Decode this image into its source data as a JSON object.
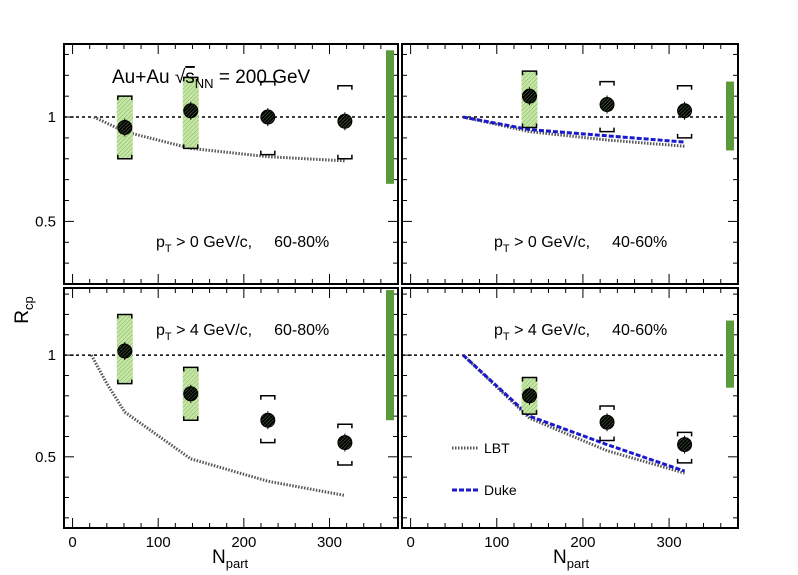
{
  "figure": {
    "y_axis_label_main": "R",
    "y_axis_label_sub": "cp",
    "x_axis_label_main": "N",
    "x_axis_label_sub": "part",
    "system_label_prefix": "Au+Au ",
    "system_label_sqrt": "√",
    "system_label_s": "s",
    "system_label_sub": "NN",
    "system_label_suffix": " = 200 GeV"
  },
  "colors": {
    "data_marker": "#000000",
    "syst_fill": "#c8e6a8",
    "norm_band": "#5a9a3a",
    "lbt": "#555555",
    "duke": "#1a1acc",
    "reference_line": "#000000"
  },
  "legend": {
    "lbt": "LBT",
    "duke": "Duke"
  },
  "chart_data": [
    {
      "type": "scatter",
      "panel": "top-left",
      "label_pt_prefix": "p",
      "label_pt_sub": "T",
      "label_pt_suffix": " > 0 GeV/c,",
      "label_centrality": "60-80%",
      "xlim": [
        -10,
        380
      ],
      "ylim": [
        0.2,
        1.35
      ],
      "xticks": [
        "0",
        "100",
        "200",
        "300"
      ],
      "yticks": [
        "0.5",
        "1"
      ],
      "show_x_tick_labels": false,
      "show_y_tick_labels": true,
      "points": [
        {
          "x": 61,
          "y": 0.95,
          "syst_lo": 0.8,
          "syst_hi": 1.1,
          "shaded": true
        },
        {
          "x": 138,
          "y": 1.03,
          "syst_lo": 0.85,
          "syst_hi": 1.19,
          "shaded": true
        },
        {
          "x": 228,
          "y": 1.0,
          "syst_lo": 0.82,
          "syst_hi": 1.17,
          "shaded": false
        },
        {
          "x": 318,
          "y": 0.98,
          "syst_lo": 0.8,
          "syst_hi": 1.15,
          "shaded": false
        }
      ],
      "norm_band": [
        0.68,
        1.32
      ],
      "lbt": [
        [
          25,
          1.0
        ],
        [
          61,
          0.93
        ],
        [
          138,
          0.85
        ],
        [
          228,
          0.81
        ],
        [
          318,
          0.79
        ]
      ],
      "duke": []
    },
    {
      "type": "scatter",
      "panel": "top-right",
      "label_pt_prefix": "p",
      "label_pt_sub": "T",
      "label_pt_suffix": " > 0 GeV/c,",
      "label_centrality": "40-60%",
      "xlim": [
        -10,
        380
      ],
      "ylim": [
        0.2,
        1.35
      ],
      "xticks": [
        "0",
        "100",
        "200",
        "300"
      ],
      "yticks": [
        "0.5",
        "1"
      ],
      "show_x_tick_labels": false,
      "show_y_tick_labels": false,
      "points": [
        {
          "x": 138,
          "y": 1.1,
          "syst_lo": 0.95,
          "syst_hi": 1.22,
          "shaded": true
        },
        {
          "x": 228,
          "y": 1.06,
          "syst_lo": 0.93,
          "syst_hi": 1.17,
          "shaded": false
        },
        {
          "x": 318,
          "y": 1.03,
          "syst_lo": 0.9,
          "syst_hi": 1.15,
          "shaded": false
        }
      ],
      "norm_band": [
        0.84,
        1.17
      ],
      "lbt": [
        [
          61,
          1.0
        ],
        [
          138,
          0.93
        ],
        [
          228,
          0.89
        ],
        [
          318,
          0.86
        ]
      ],
      "duke": [
        [
          61,
          1.0
        ],
        [
          138,
          0.94
        ],
        [
          228,
          0.91
        ],
        [
          318,
          0.88
        ]
      ]
    },
    {
      "type": "scatter",
      "panel": "bottom-left",
      "label_pt_prefix": "p",
      "label_pt_sub": "T",
      "label_pt_suffix": " > 4 GeV/c,",
      "label_centrality": "60-80%",
      "xlim": [
        -10,
        380
      ],
      "ylim": [
        0.15,
        1.33
      ],
      "xticks": [
        "0",
        "100",
        "200",
        "300"
      ],
      "yticks": [
        "0.5",
        "1"
      ],
      "show_x_tick_labels": true,
      "show_y_tick_labels": true,
      "points": [
        {
          "x": 61,
          "y": 1.02,
          "syst_lo": 0.86,
          "syst_hi": 1.2,
          "shaded": true
        },
        {
          "x": 138,
          "y": 0.81,
          "syst_lo": 0.68,
          "syst_hi": 0.94,
          "shaded": true
        },
        {
          "x": 228,
          "y": 0.68,
          "syst_lo": 0.57,
          "syst_hi": 0.8,
          "shaded": false
        },
        {
          "x": 318,
          "y": 0.57,
          "syst_lo": 0.46,
          "syst_hi": 0.66,
          "shaded": false
        }
      ],
      "norm_band": [
        0.68,
        1.32
      ],
      "lbt": [
        [
          22,
          1.0
        ],
        [
          40,
          0.86
        ],
        [
          61,
          0.72
        ],
        [
          138,
          0.49
        ],
        [
          228,
          0.38
        ],
        [
          318,
          0.31
        ]
      ],
      "duke": []
    },
    {
      "type": "scatter",
      "panel": "bottom-right",
      "label_pt_prefix": "p",
      "label_pt_sub": "T",
      "label_pt_suffix": " > 4 GeV/c,",
      "label_centrality": "40-60%",
      "xlim": [
        -10,
        380
      ],
      "ylim": [
        0.15,
        1.33
      ],
      "xticks": [
        "0",
        "100",
        "200",
        "300"
      ],
      "yticks": [
        "0.5",
        "1"
      ],
      "show_x_tick_labels": true,
      "show_y_tick_labels": false,
      "points": [
        {
          "x": 138,
          "y": 0.8,
          "syst_lo": 0.71,
          "syst_hi": 0.89,
          "shaded": true
        },
        {
          "x": 228,
          "y": 0.67,
          "syst_lo": 0.58,
          "syst_hi": 0.75,
          "shaded": false
        },
        {
          "x": 318,
          "y": 0.56,
          "syst_lo": 0.47,
          "syst_hi": 0.62,
          "shaded": false
        }
      ],
      "norm_band": [
        0.84,
        1.17
      ],
      "lbt": [
        [
          61,
          1.0
        ],
        [
          138,
          0.69
        ],
        [
          228,
          0.53
        ],
        [
          318,
          0.42
        ]
      ],
      "duke": [
        [
          61,
          1.0
        ],
        [
          138,
          0.7
        ],
        [
          228,
          0.56
        ],
        [
          318,
          0.43
        ]
      ]
    }
  ]
}
